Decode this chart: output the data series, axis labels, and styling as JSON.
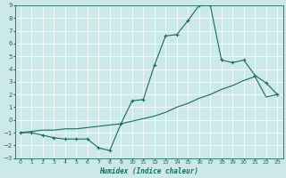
{
  "xlabel": "Humidex (Indice chaleur)",
  "bg_color": "#cce8e8",
  "grid_color": "#ffffff",
  "line_color": "#1a6b5a",
  "xlim": [
    -0.5,
    23.5
  ],
  "ylim": [
    -3,
    9
  ],
  "xticks": [
    0,
    1,
    2,
    3,
    4,
    5,
    6,
    7,
    8,
    9,
    10,
    11,
    12,
    13,
    14,
    15,
    16,
    17,
    18,
    19,
    20,
    21,
    22,
    23
  ],
  "yticks": [
    -3,
    -2,
    -1,
    0,
    1,
    2,
    3,
    4,
    5,
    6,
    7,
    8,
    9
  ],
  "curve1_x": [
    0,
    1,
    2,
    3,
    4,
    5,
    6,
    7,
    8,
    9,
    10,
    11,
    12,
    13,
    14,
    15,
    16,
    17,
    18,
    19,
    20,
    21,
    22,
    23
  ],
  "curve1_y": [
    -1,
    -1,
    -1.2,
    -1.4,
    -1.5,
    -1.5,
    -1.5,
    -2.2,
    -2.4,
    -0.3,
    1.5,
    1.6,
    4.3,
    6.6,
    6.7,
    7.8,
    9.0,
    9.0,
    4.7,
    4.5,
    4.7,
    3.5,
    2.9,
    2.0
  ],
  "curve2_x": [
    0,
    1,
    2,
    3,
    4,
    5,
    6,
    7,
    8,
    9,
    10,
    11,
    12,
    13,
    14,
    15,
    16,
    17,
    18,
    19,
    20,
    21,
    22,
    23
  ],
  "curve2_y": [
    -1,
    -0.9,
    -0.8,
    -0.8,
    -0.7,
    -0.7,
    -0.6,
    -0.5,
    -0.4,
    -0.3,
    -0.1,
    0.1,
    0.3,
    0.6,
    1.0,
    1.3,
    1.7,
    2.0,
    2.4,
    2.7,
    3.1,
    3.4,
    1.8,
    2.0
  ],
  "figsize": [
    3.2,
    2.0
  ],
  "dpi": 100
}
